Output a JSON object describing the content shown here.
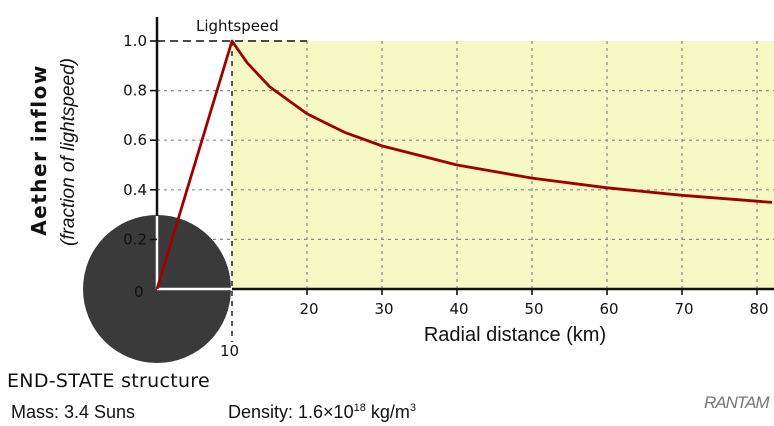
{
  "chart_data": {
    "type": "line",
    "title": "",
    "xlabel": "Radial distance (km)",
    "ylabel": "Aether inflow",
    "ylabel_sub": "(fraction of lightspeed)",
    "xlim": [
      0,
      82
    ],
    "ylim": [
      0,
      1.0
    ],
    "x_ticks": [
      20,
      30,
      40,
      50,
      60,
      70,
      80
    ],
    "x_ticks_labels": [
      "20",
      "30",
      "40",
      "50",
      "60",
      "70",
      "80"
    ],
    "y_ticks": [
      0.2,
      0.4,
      0.6,
      0.8,
      1.0
    ],
    "y_ticks_labels": [
      "0.2",
      "0.4",
      "0.6",
      "0.8",
      "1.0"
    ],
    "origin_label": "0",
    "radius_label": "10",
    "grid": true,
    "shaded_region": {
      "x_from": 10,
      "x_to": 82,
      "color": "#f7f9c4"
    },
    "annotation": "Lightspeed",
    "colors": {
      "curve": "#a00000",
      "body": "#3a3a3a"
    },
    "series": [
      {
        "x": [
          0,
          10,
          12,
          15,
          20,
          25,
          30,
          40,
          50,
          60,
          70,
          80,
          82
        ],
        "y": [
          0,
          1.0,
          0.913,
          0.816,
          0.707,
          0.632,
          0.577,
          0.5,
          0.447,
          0.408,
          0.378,
          0.354,
          0.349
        ]
      }
    ]
  },
  "caption": {
    "title": "END-STATE structure",
    "mass": "Mass: 3.4 Suns",
    "density_prefix": "Density: 1.6×10",
    "density_exp": "18",
    "density_unit": " kg/m",
    "density_unit_exp": "3"
  },
  "logo_text": "RANTAM"
}
